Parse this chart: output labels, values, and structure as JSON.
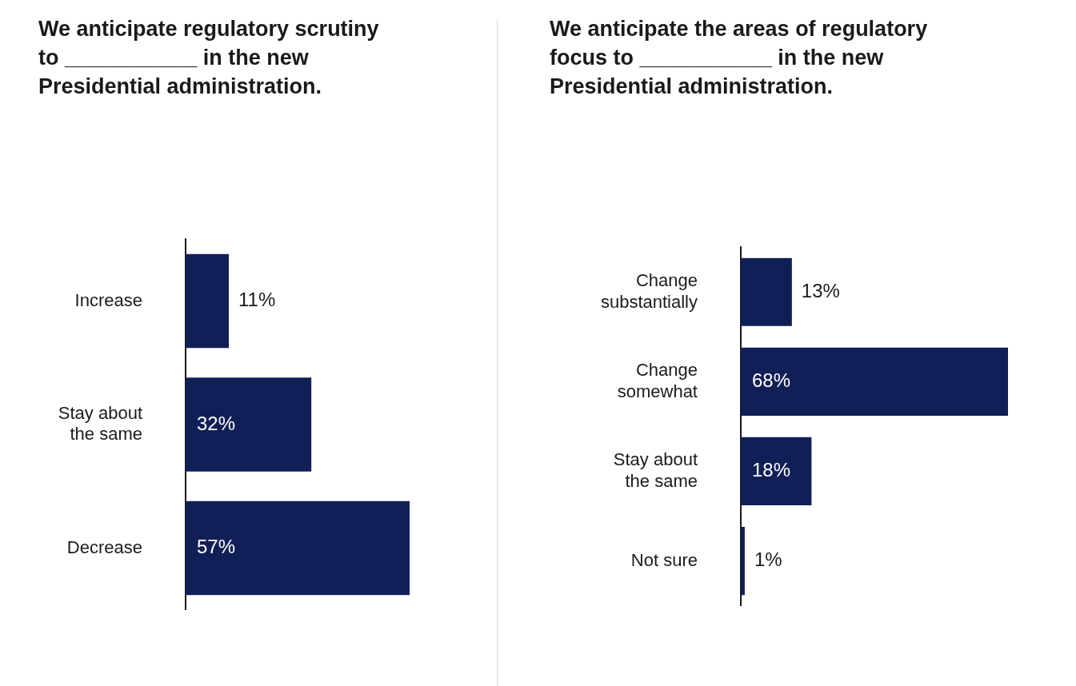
{
  "chart_data": [
    {
      "type": "bar",
      "orientation": "horizontal",
      "title": "We anticipate regulatory scrutiny to ___________  in the new Presidential administration.",
      "categories": [
        "Increase",
        "Stay about the same",
        "Decrease"
      ],
      "values": [
        11,
        32,
        57
      ],
      "value_labels": [
        "11%",
        "32%",
        "57%"
      ],
      "color": "#111f57"
    },
    {
      "type": "bar",
      "orientation": "horizontal",
      "title": "We anticipate the areas of regulatory focus to ___________ in the new Presidential administration.",
      "categories": [
        "Change substantially",
        "Change somewhat",
        "Stay about the same",
        "Not sure"
      ],
      "values": [
        13,
        68,
        18,
        1
      ],
      "value_labels": [
        "13%",
        "68%",
        "18%",
        "1%"
      ],
      "color": "#111f57"
    }
  ]
}
